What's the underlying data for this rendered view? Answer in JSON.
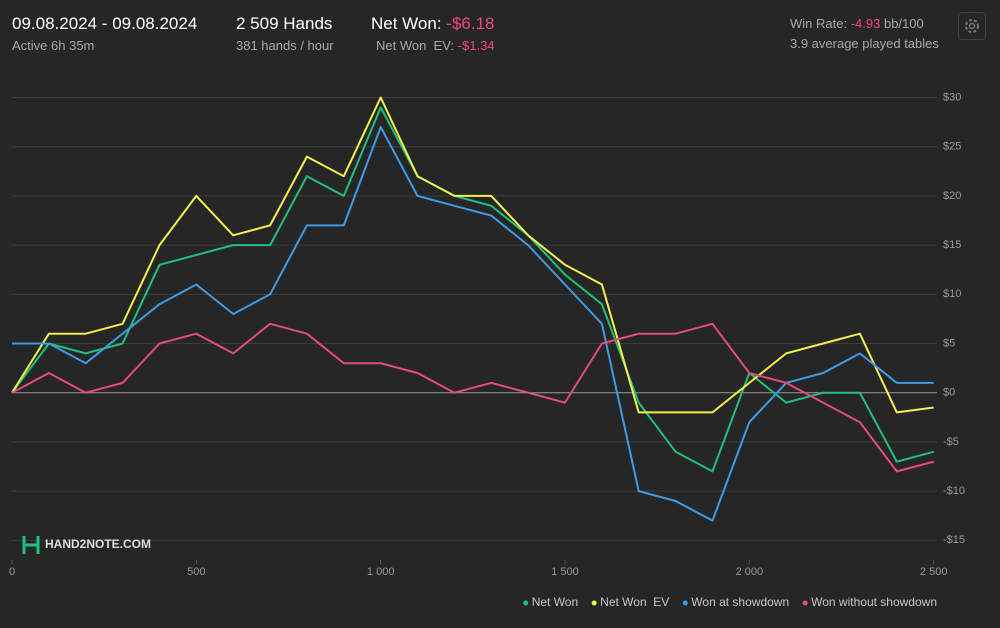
{
  "header": {
    "date_range": "09.08.2024 - 09.08.2024",
    "active": "Active 6h 35m",
    "hands": "2 509 Hands",
    "hands_per_hour": "381 hands / hour",
    "net_won_label": "Net Won:",
    "net_won_value": "-$6.18",
    "net_won_ev_label": "Net Won  EV:",
    "net_won_ev_value": "-$1.34",
    "win_rate_label": "Win Rate:",
    "win_rate_value": "-4.93",
    "win_rate_unit": "bb/100",
    "tables": "3.9 average played tables",
    "watermark": "HAND2NOTE.COM"
  },
  "chart_data": {
    "type": "line",
    "x": [
      0,
      100,
      200,
      300,
      400,
      500,
      600,
      700,
      800,
      900,
      1000,
      1100,
      1200,
      1300,
      1400,
      1500,
      1600,
      1700,
      1800,
      1900,
      2000,
      2100,
      2200,
      2300,
      2400,
      2500
    ],
    "series": [
      {
        "name": "Net Won",
        "color": "#1fc07a",
        "values": [
          0,
          5,
          4,
          5,
          13,
          14,
          15,
          15,
          22,
          20,
          29,
          22,
          20,
          19,
          16,
          12,
          9,
          -1,
          -6,
          -8,
          2,
          -1,
          0,
          0,
          -7,
          -6
        ]
      },
      {
        "name": "Net Won  EV",
        "color": "#f2f04a",
        "values": [
          0,
          6,
          6,
          7,
          15,
          20,
          16,
          17,
          24,
          22,
          30,
          22,
          20,
          20,
          16,
          13,
          11,
          -2,
          -2,
          -2,
          1,
          4,
          5,
          6,
          -2,
          -1.5
        ]
      },
      {
        "name": "Won at showdown",
        "color": "#3d9be6",
        "values": [
          5,
          5,
          3,
          6,
          9,
          11,
          8,
          10,
          17,
          17,
          27,
          20,
          19,
          18,
          15,
          11,
          7,
          -10,
          -11,
          -13,
          -3,
          1,
          2,
          4,
          1,
          1
        ]
      },
      {
        "name": "Won without showdown",
        "color": "#e44a7d",
        "values": [
          0,
          2,
          0,
          1,
          5,
          6,
          4,
          7,
          6,
          3,
          3,
          2,
          0,
          1,
          0,
          -1,
          5,
          6,
          6,
          7,
          2,
          1,
          -1,
          -3,
          -8,
          -7
        ]
      }
    ],
    "xlim": [
      0,
      2509
    ],
    "ylim": [
      -17,
      33
    ],
    "xticks": [
      0,
      500,
      {
        "value": 1000,
        "label": "1 000"
      },
      {
        "value": 1500,
        "label": "1 500"
      },
      {
        "value": 2000,
        "label": "2 000"
      },
      {
        "value": 2500,
        "label": "2 500"
      }
    ],
    "yticks": [
      {
        "value": -15,
        "label": "-$15"
      },
      {
        "value": -10,
        "label": "-$10"
      },
      {
        "value": -5,
        "label": "-$5"
      },
      {
        "value": 0,
        "label": "$0"
      },
      {
        "value": 5,
        "label": "$5"
      },
      {
        "value": 10,
        "label": "$10"
      },
      {
        "value": 15,
        "label": "$15"
      },
      {
        "value": 20,
        "label": "$20"
      },
      {
        "value": 25,
        "label": "$25"
      },
      {
        "value": 30,
        "label": "$30"
      }
    ],
    "grid": true
  }
}
